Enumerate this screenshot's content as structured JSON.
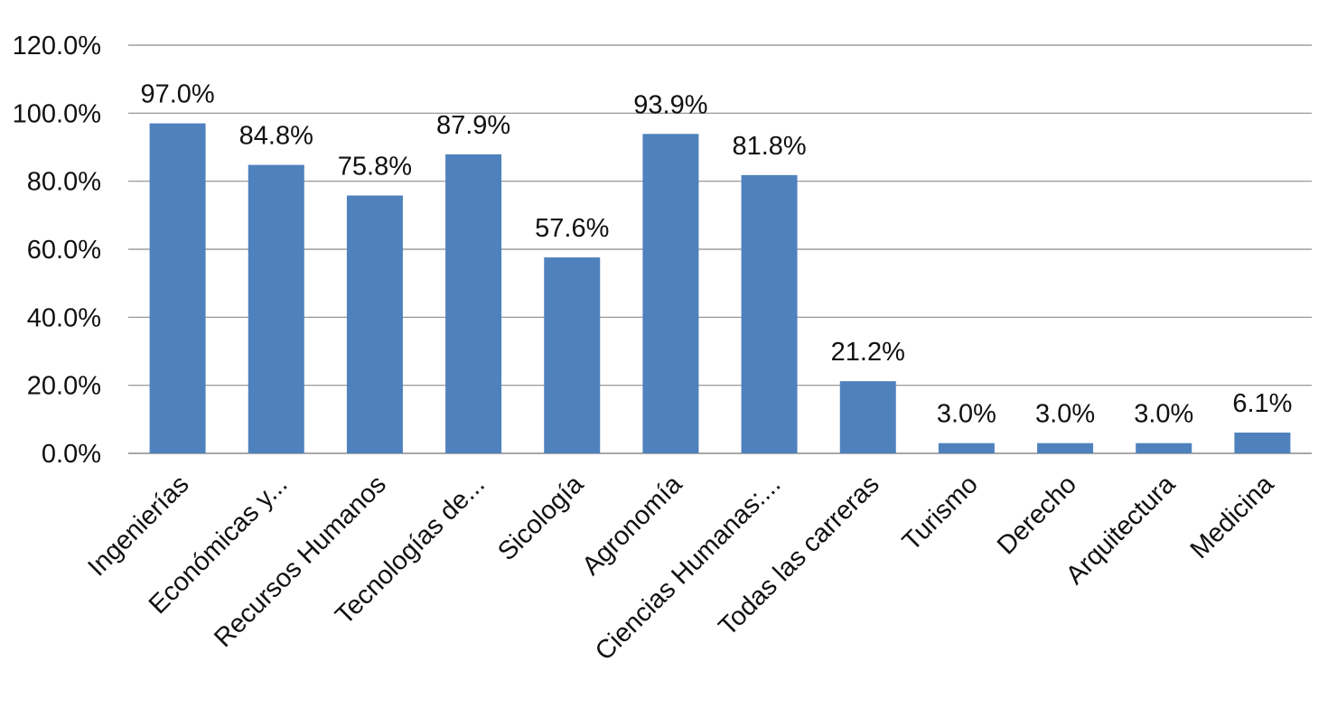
{
  "chart_data": {
    "type": "bar",
    "categories": [
      "Ingenierías",
      "Económicas y...",
      "Recursos Humanos",
      "Tecnologías de...",
      "Sicología",
      "Agronomía",
      "Ciencias Humanas:...",
      "Todas las carreras",
      "Turismo",
      "Derecho",
      "Arquitectura",
      "Medicina"
    ],
    "values": [
      97.0,
      84.8,
      75.8,
      87.9,
      57.6,
      93.9,
      81.8,
      21.2,
      3.0,
      3.0,
      3.0,
      6.1
    ],
    "data_labels": [
      "97.0%",
      "84.8%",
      "75.8%",
      "87.9%",
      "57.6%",
      "93.9%",
      "81.8%",
      "21.2%",
      "3.0%",
      "3.0%",
      "3.0%",
      "6.1%"
    ],
    "y_ticks": [
      0,
      20,
      40,
      60,
      80,
      100,
      120
    ],
    "y_tick_labels": [
      "0.0%",
      "20.0%",
      "40.0%",
      "60.0%",
      "80.0%",
      "100.0%",
      "120.0%"
    ],
    "ylim": [
      0,
      120
    ],
    "title": "",
    "xlabel": "",
    "ylabel": "",
    "grid": true,
    "legend": "none",
    "colors": {
      "bar": "#4F81BD",
      "grid": "#8C8C8C",
      "text": "#111111"
    }
  }
}
